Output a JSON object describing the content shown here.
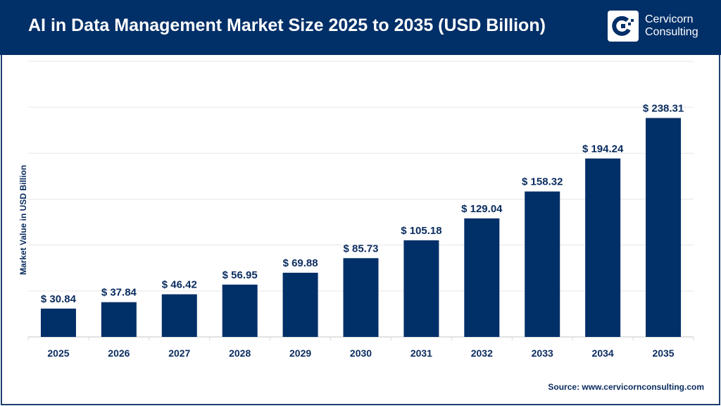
{
  "header": {
    "title": "AI in Data Management Market Size 2025 to 2035 (USD Billion)",
    "logo_text": [
      "Cervicorn",
      "Consulting"
    ]
  },
  "source": "Source: www.cervicornconsulting.com",
  "colors": {
    "bar": "#012f68",
    "header": "#012f68",
    "label": "#0b2d60",
    "grid": "#e6e6e6"
  },
  "chart_data": {
    "type": "bar",
    "title": "AI in Data Management Market Size 2025 to 2035 (USD Billion)",
    "xlabel": "",
    "ylabel": "Market Value in USD Billion",
    "ylim": [
      0,
      300
    ],
    "grid": true,
    "categories": [
      "2025",
      "2026",
      "2027",
      "2028",
      "2029",
      "2030",
      "2031",
      "2032",
      "2033",
      "2034",
      "2035"
    ],
    "values": [
      30.84,
      37.84,
      46.42,
      56.95,
      69.88,
      85.73,
      105.18,
      129.04,
      158.32,
      194.24,
      238.31
    ],
    "data_labels": [
      "$ 30.84",
      "$ 37.84",
      "$ 46.42",
      "$ 56.95",
      "$ 69.88",
      "$ 85.73",
      "$ 105.18",
      "$ 129.04",
      "$ 158.32",
      "$ 194.24",
      "$ 238.31"
    ]
  }
}
